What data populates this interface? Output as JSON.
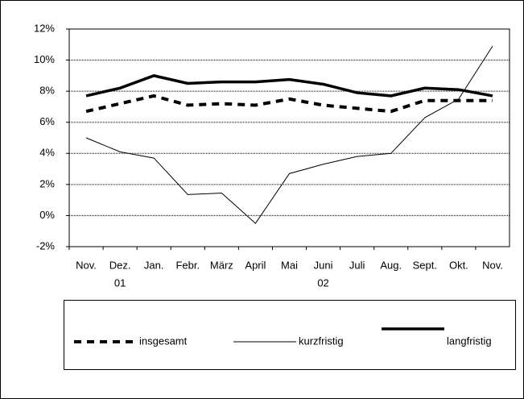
{
  "chart_data": {
    "type": "line",
    "categories": [
      "Nov.",
      "Dez.",
      "Jan.",
      "Febr.",
      "März",
      "April",
      "Mai",
      "Juni",
      "Juli",
      "Aug.",
      "Sept.",
      "Okt.",
      "Nov."
    ],
    "category_sublabels": [
      null,
      "01",
      null,
      null,
      null,
      null,
      null,
      "02",
      null,
      null,
      null,
      null,
      null
    ],
    "series": [
      {
        "name": "insgesamt",
        "color": "#000000",
        "style": "dashed",
        "values": [
          6.7,
          7.2,
          7.7,
          7.1,
          7.2,
          7.1,
          7.5,
          7.1,
          6.9,
          6.7,
          7.4,
          7.4,
          7.4
        ]
      },
      {
        "name": "kurzfristig",
        "color": "#000000",
        "style": "thin",
        "values": [
          5.0,
          4.1,
          3.7,
          1.35,
          1.45,
          -0.5,
          2.7,
          3.3,
          3.8,
          4.0,
          6.3,
          7.5,
          10.9
        ]
      },
      {
        "name": "langfristig",
        "color": "#000000",
        "style": "thick",
        "values": [
          7.7,
          8.2,
          9.0,
          8.5,
          8.6,
          8.6,
          8.75,
          8.45,
          7.9,
          7.7,
          8.2,
          8.1,
          7.7
        ]
      }
    ],
    "ylim": [
      -2,
      12
    ],
    "yticks": [
      {
        "value": -2,
        "label": "-2%"
      },
      {
        "value": 0,
        "label": "0%"
      },
      {
        "value": 2,
        "label": "2%"
      },
      {
        "value": 4,
        "label": "4%"
      },
      {
        "value": 6,
        "label": "6%"
      },
      {
        "value": 8,
        "label": "8%"
      },
      {
        "value": 10,
        "label": "10%"
      },
      {
        "value": 12,
        "label": "12%"
      }
    ],
    "grid": true,
    "legend": "bottom"
  }
}
